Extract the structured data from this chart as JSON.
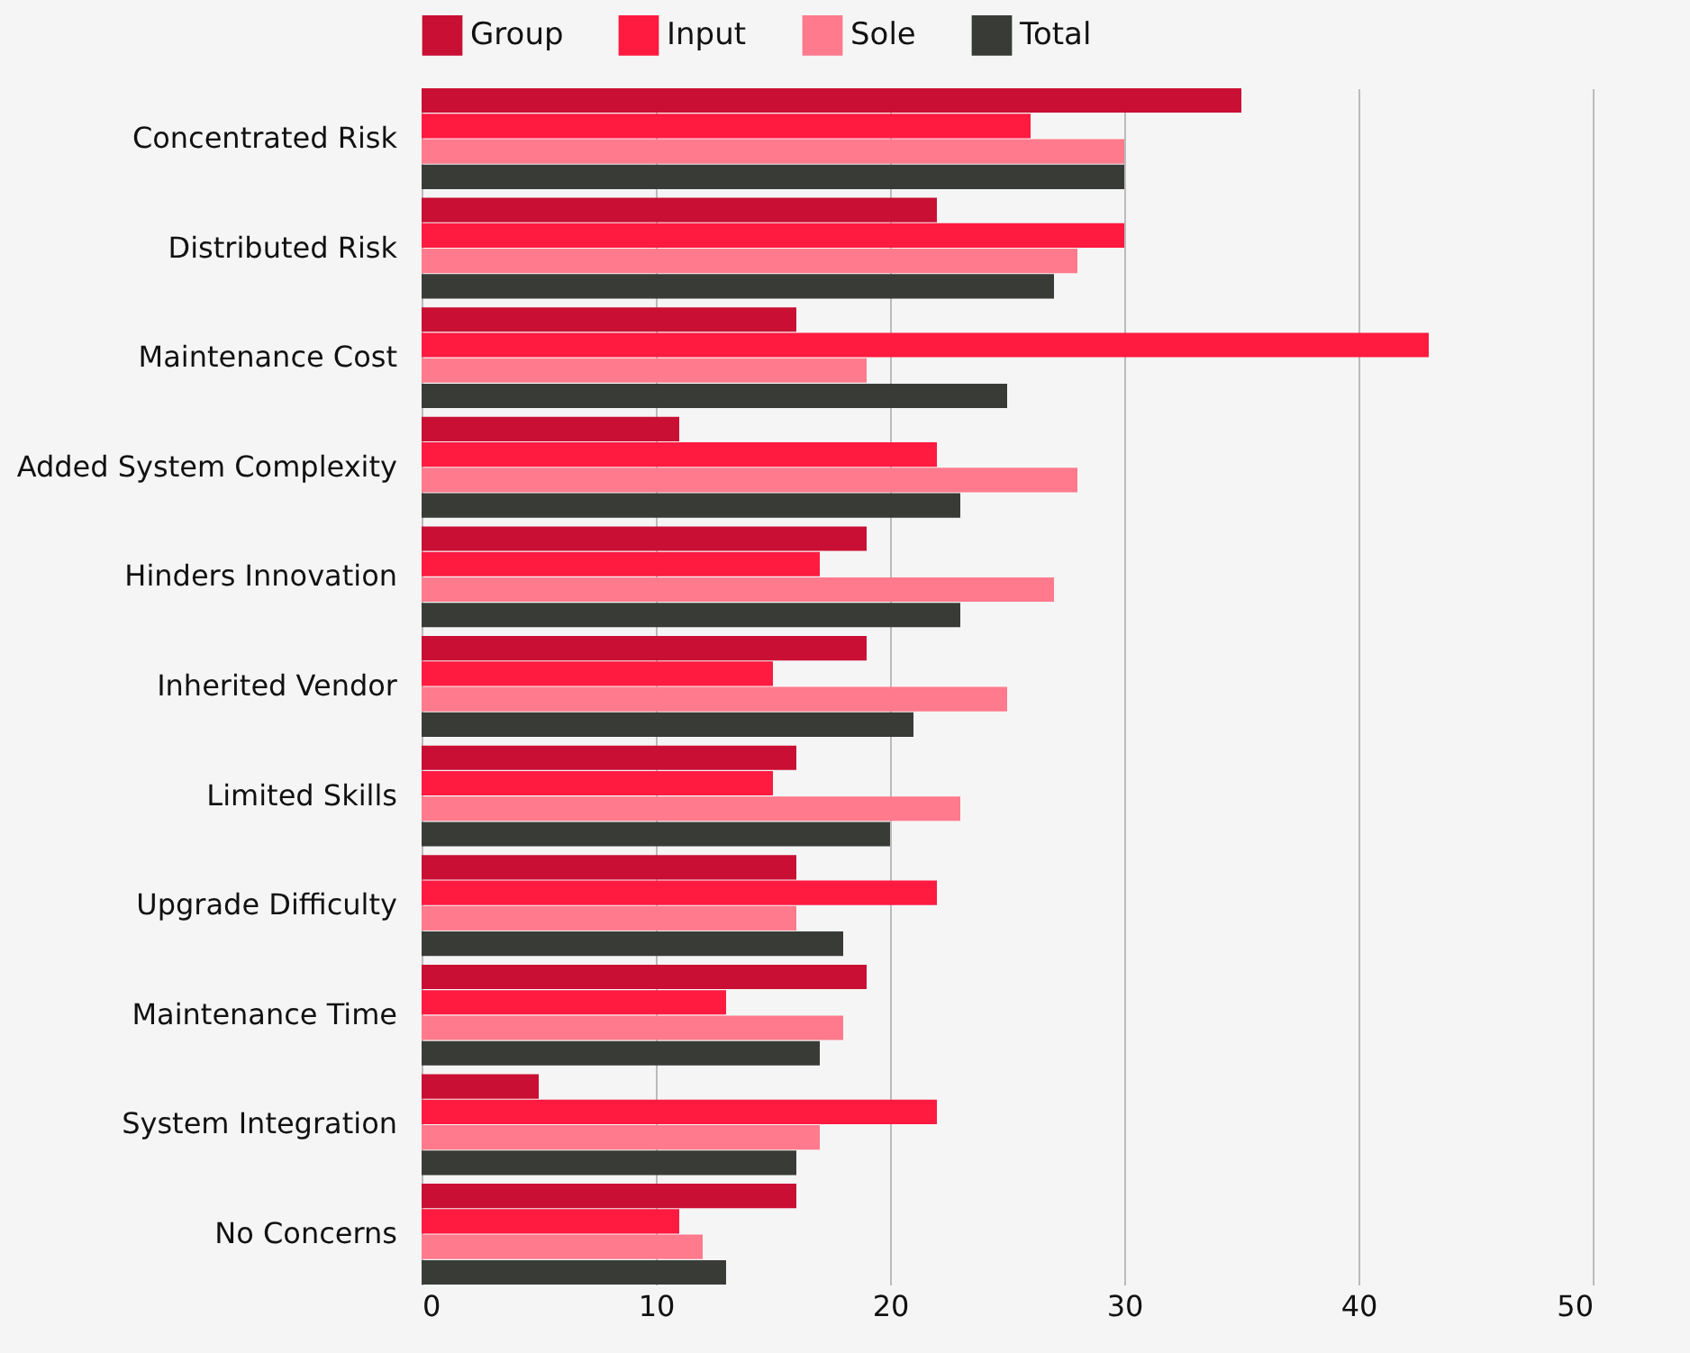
{
  "chart_data": {
    "type": "bar",
    "orientation": "horizontal",
    "categories": [
      "Concentrated Risk",
      "Distributed Risk",
      "Maintenance Cost",
      "Added System Complexity",
      "Hinders Innovation",
      "Inherited Vendor",
      "Limited Skills",
      "Upgrade Difficulty",
      "Maintenance Time",
      "System Integration",
      "No Concerns"
    ],
    "series": [
      {
        "name": "Group",
        "color": "#c90f33",
        "values": [
          35,
          22,
          16,
          11,
          19,
          19,
          16,
          16,
          19,
          5,
          16
        ]
      },
      {
        "name": "Input",
        "color": "#ff1a40",
        "values": [
          26,
          30,
          43,
          22,
          17,
          15,
          15,
          22,
          13,
          22,
          11
        ]
      },
      {
        "name": "Sole",
        "color": "#ff7a8c",
        "values": [
          30,
          28,
          19,
          28,
          27,
          25,
          23,
          16,
          18,
          17,
          12
        ]
      },
      {
        "name": "Total",
        "color": "#393b36",
        "values": [
          30,
          27,
          25,
          23,
          23,
          21,
          20,
          18,
          17,
          16,
          13
        ]
      }
    ],
    "xlim": [
      0,
      50
    ],
    "xticks": [
      0,
      10,
      20,
      30,
      40,
      50
    ],
    "grid": "x",
    "legend": "top"
  }
}
